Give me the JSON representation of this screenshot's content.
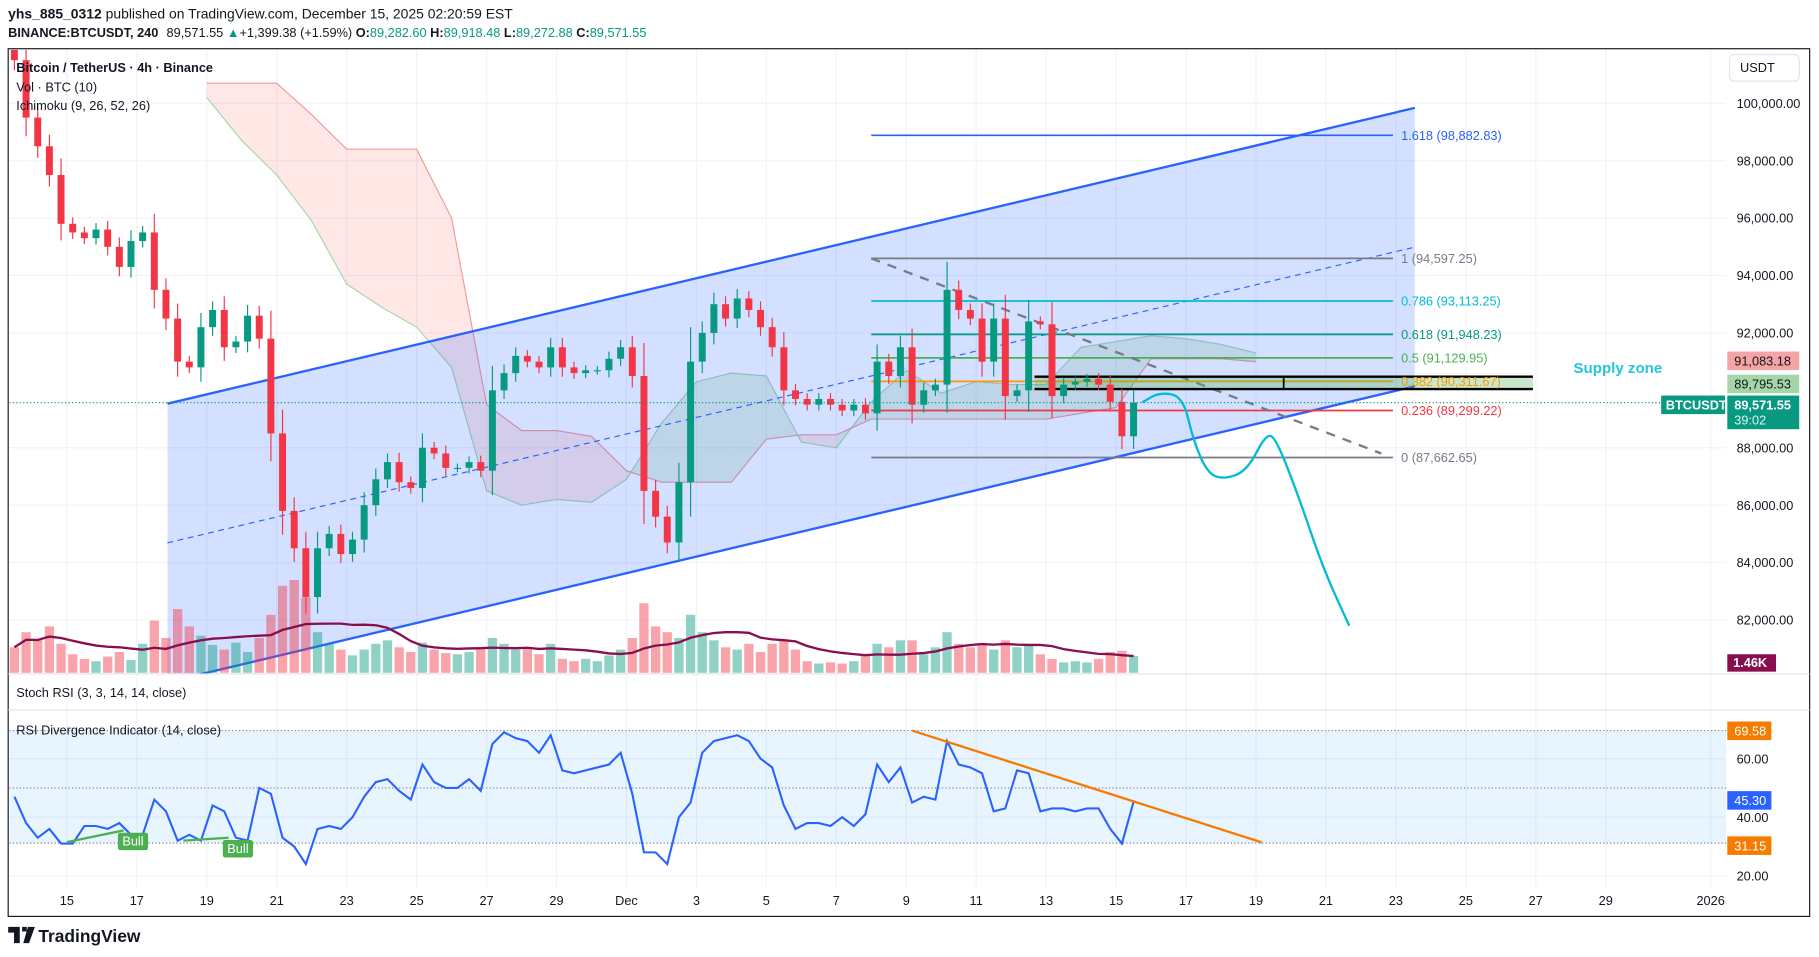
{
  "header": {
    "publisher": "yhs_885_0312",
    "published_text": " published on TradingView.com, December 15, 2025 02:20:59 EST",
    "symbol": "BINANCE:BTCUSDT, 240",
    "last": "89,571.55",
    "change": "+1,399.38 (+1.59%)",
    "o_label": "O:",
    "o": "89,282.60",
    "h_label": "H:",
    "h": "89,918.48",
    "l_label": "L:",
    "l": "89,272.88",
    "c_label": "C:",
    "c": "89,571.55"
  },
  "legend": {
    "title": "Bitcoin / TetherUS · 4h · Binance",
    "volume": "Vol · BTC (10)",
    "ichimoku": "Ichimoku (9, 26, 52, 26)",
    "stoch_rsi": "Stoch RSI (3, 3, 14, 14, close)",
    "rsi_divergence": "RSI Divergence Indicator (14, close)"
  },
  "price_axis": {
    "currency": "USDT",
    "ticks": [
      {
        "value": 100000,
        "label": "100,000.00"
      },
      {
        "value": 98000,
        "label": "98,000.00"
      },
      {
        "value": 96000,
        "label": "96,000.00"
      },
      {
        "value": 94000,
        "label": "94,000.00"
      },
      {
        "value": 92000,
        "label": "92,000.00"
      },
      {
        "value": 88000,
        "label": "88,000.00"
      },
      {
        "value": 86000,
        "label": "86,000.00"
      },
      {
        "value": 84000,
        "label": "84,000.00"
      },
      {
        "value": 82000,
        "label": "82,000.00"
      }
    ]
  },
  "rsi_axis": {
    "ticks": [
      {
        "value": 60,
        "label": "60.00"
      },
      {
        "value": 40,
        "label": "40.00"
      },
      {
        "value": 20,
        "label": "20.00"
      }
    ]
  },
  "date_axis": {
    "ticks": [
      {
        "date": "2025-11-15",
        "label": "15"
      },
      {
        "date": "2025-11-17",
        "label": "17"
      },
      {
        "date": "2025-11-19",
        "label": "19"
      },
      {
        "date": "2025-11-21",
        "label": "21"
      },
      {
        "date": "2025-11-23",
        "label": "23"
      },
      {
        "date": "2025-11-25",
        "label": "25"
      },
      {
        "date": "2025-11-27",
        "label": "27"
      },
      {
        "date": "2025-11-29",
        "label": "29"
      },
      {
        "date": "2025-12-01",
        "label": "Dec"
      },
      {
        "date": "2025-12-03",
        "label": "3"
      },
      {
        "date": "2025-12-05",
        "label": "5"
      },
      {
        "date": "2025-12-07",
        "label": "7"
      },
      {
        "date": "2025-12-09",
        "label": "9"
      },
      {
        "date": "2025-12-11",
        "label": "11"
      },
      {
        "date": "2025-12-13",
        "label": "13"
      },
      {
        "date": "2025-12-15",
        "label": "15"
      },
      {
        "date": "2025-12-17",
        "label": "17"
      },
      {
        "date": "2025-12-19",
        "label": "19"
      },
      {
        "date": "2025-12-21",
        "label": "21"
      },
      {
        "date": "2025-12-23",
        "label": "23"
      },
      {
        "date": "2025-12-25",
        "label": "25"
      },
      {
        "date": "2025-12-27",
        "label": "27"
      },
      {
        "date": "2025-12-29",
        "label": "29"
      },
      {
        "date": "2026-01-01",
        "label": "2026"
      }
    ]
  },
  "tags": {
    "supply_top": {
      "value": "91,083.18",
      "bg": "#f4a4a4"
    },
    "supply_bottom": {
      "value": "89,795.53",
      "bg": "#a5d6a7"
    },
    "symbol": "BTCUSDT",
    "last_price": "89,571.55",
    "countdown": "39:02",
    "last_color": "#089981",
    "volume": "1.46K",
    "volume_color": "#880e4f",
    "rsi_upper": "69.58",
    "rsi_value": "45.30",
    "rsi_lower": "31.15",
    "rsi_band_color": "#f57c00",
    "rsi_line_color": "#2962ff"
  },
  "fib": {
    "from": "2025-12-08T00:00",
    "to": "2025-12-22T22:00",
    "levels": [
      {
        "ratio": "1.618",
        "price": 98882.83,
        "label": "1.618 (98,882.83)",
        "color": "#2962ff"
      },
      {
        "ratio": "1",
        "price": 94597.25,
        "label": "1 (94,597.25)",
        "color": "#787b86"
      },
      {
        "ratio": "0.786",
        "price": 93113.25,
        "label": "0.786 (93,113.25)",
        "color": "#00bcd4"
      },
      {
        "ratio": "0.618",
        "price": 91948.23,
        "label": "0.618 (91,948.23)",
        "color": "#089981"
      },
      {
        "ratio": "0.5",
        "price": 91129.95,
        "label": "0.5 (91,129.95)",
        "color": "#4caf50"
      },
      {
        "ratio": "0.382",
        "price": 90311.67,
        "label": "0.382 (90,311.67)",
        "color": "#ff9800"
      },
      {
        "ratio": "0.236",
        "price": 89299.22,
        "label": "0.236 (89,299.22)",
        "color": "#f23645"
      },
      {
        "ratio": "0",
        "price": 87662.65,
        "label": "0 (87,662.65)",
        "color": "#787b86"
      }
    ],
    "trend": [
      [
        "2025-12-08T00:00",
        94597
      ],
      [
        "2025-12-22T14:00",
        87800
      ]
    ]
  },
  "channel": {
    "color": "#2962ff",
    "upper": [
      [
        "2025-11-17T21:00",
        89535
      ],
      [
        "2025-12-23T13:00",
        99838
      ]
    ],
    "lower": [
      [
        "2025-11-17T21:00",
        79840
      ],
      [
        "2025-12-23T13:00",
        90141
      ]
    ]
  },
  "supply_zone": {
    "label": "Supply zone",
    "color": "#26c6da",
    "from": "2025-12-12T16:00",
    "to": "2025-12-26T22:00",
    "top": 90475,
    "bottom": 90045
  },
  "projection": {
    "color": "#00bcd4",
    "points": [
      [
        "2025-12-15T18:00",
        89580
      ],
      [
        "2025-12-16T06:00",
        89940
      ],
      [
        "2025-12-16T22:00",
        89780
      ],
      [
        "2025-12-17T05:00",
        88240
      ],
      [
        "2025-12-17T15:00",
        87100
      ],
      [
        "2025-12-18T02:00",
        86900
      ],
      [
        "2025-12-18T18:00",
        87200
      ],
      [
        "2025-12-19T07:00",
        88500
      ],
      [
        "2025-12-19T14:00",
        88300
      ],
      [
        "2025-12-20T06:00",
        86200
      ],
      [
        "2025-12-20T22:00",
        83800
      ],
      [
        "2025-12-21T16:00",
        81800
      ]
    ]
  },
  "divergences": [
    {
      "label": "Bull",
      "from": [
        "2025-11-15T00:00",
        31.5
      ],
      "to": [
        "2025-11-16T15:00",
        35.5
      ]
    },
    {
      "label": "Bull",
      "from": [
        "2025-11-18T08:00",
        32.0
      ],
      "to": [
        "2025-11-19T15:00",
        33.0
      ]
    }
  ],
  "rsi_trendline": {
    "color": "#f57c00",
    "from": [
      "2025-12-09T04:00",
      69.58
    ],
    "to": [
      "2025-12-19T04:00",
      31.4
    ]
  },
  "chart_data": {
    "type": "candlestick",
    "ylim": [
      80150,
      101900
    ],
    "xlim": [
      "2025-11-13",
      "2026-01-01"
    ],
    "grid": true,
    "closes": [
      101500,
      99500,
      98500,
      97500,
      95800,
      95500,
      95300,
      95600,
      95000,
      94300,
      95200,
      95500,
      93500,
      92500,
      91000,
      90800,
      92200,
      92800,
      91500,
      91700,
      92600,
      91800,
      88500,
      85800,
      84500,
      82800,
      84500,
      85000,
      84300,
      84800,
      86000,
      86900,
      87500,
      86800,
      86600,
      88000,
      87800,
      87300,
      87300,
      87500,
      87200,
      90000,
      90600,
      91200,
      91000,
      90800,
      91500,
      90800,
      90600,
      90700,
      90700,
      91100,
      91500,
      90500,
      86500,
      85600,
      84700,
      86800,
      91000,
      92000,
      93000,
      92500,
      93200,
      92800,
      92200,
      91500,
      90000,
      89700,
      89500,
      89700,
      89500,
      89300,
      89500,
      89200,
      91000,
      90500,
      91500,
      89500,
      90000,
      90200,
      93500,
      92800,
      92500,
      91000,
      92500,
      89800,
      90000,
      92400,
      92300,
      89800,
      90200,
      90300,
      90400,
      90200,
      89600,
      88400,
      89571.55
    ],
    "volume_k": [
      2.2,
      3.5,
      2.8,
      4.0,
      2.5,
      1.6,
      1.2,
      1.0,
      1.4,
      1.8,
      1.1,
      2.5,
      4.5,
      3.0,
      5.5,
      4.0,
      3.2,
      2.4,
      2.0,
      2.6,
      1.8,
      3.0,
      5.0,
      7.5,
      8.0,
      6.5,
      3.5,
      2.5,
      2.0,
      1.5,
      2.0,
      2.5,
      2.8,
      2.2,
      1.8,
      2.6,
      2.0,
      1.7,
      1.6,
      1.8,
      2.2,
      3.0,
      2.5,
      2.0,
      2.2,
      1.6,
      2.5,
      1.2,
      1.0,
      1.2,
      1.0,
      1.5,
      2.0,
      3.0,
      6.0,
      4.0,
      3.5,
      3.0,
      5.0,
      3.5,
      2.8,
      2.2,
      2.0,
      2.5,
      1.8,
      2.5,
      2.8,
      2.0,
      1.0,
      0.8,
      0.9,
      0.8,
      1.0,
      1.6,
      2.5,
      2.2,
      2.8,
      2.8,
      1.6,
      2.2,
      3.5,
      2.5,
      2.2,
      2.5,
      2.0,
      2.8,
      2.2,
      2.5,
      1.6,
      1.2,
      0.9,
      1.0,
      0.9,
      1.2,
      1.8,
      1.9,
      1.46
    ],
    "rsi": [
      47,
      38,
      33,
      36,
      31,
      31,
      37,
      37,
      36,
      38,
      34,
      34,
      46,
      42,
      32,
      34,
      32,
      44,
      42,
      33,
      32,
      50,
      48,
      33,
      30,
      24,
      36,
      37,
      36,
      40,
      47,
      52,
      53,
      49,
      46,
      58,
      52,
      50,
      50,
      53,
      49,
      65,
      69,
      67,
      66,
      62,
      68,
      56,
      55,
      56,
      57,
      58,
      62,
      48,
      28,
      28,
      24,
      40,
      45,
      62,
      66,
      67,
      68,
      66,
      60,
      57,
      44,
      36,
      38,
      38,
      37,
      40,
      37,
      41,
      58,
      52,
      57,
      45,
      47,
      46,
      66,
      58,
      57,
      55,
      42,
      43,
      56,
      55,
      42,
      43,
      43,
      42,
      43,
      43,
      36,
      31,
      45.3
    ],
    "rsi_levels": {
      "upper": 69.58,
      "middle": 50,
      "lower": 31.15
    },
    "ichimoku": {
      "dates": [
        "2025-11-19",
        "2025-11-20",
        "2025-11-21",
        "2025-11-22",
        "2025-11-23",
        "2025-11-24",
        "2025-11-25",
        "2025-11-26",
        "2025-11-27",
        "2025-11-28",
        "2025-11-29",
        "2025-11-30",
        "2025-12-01",
        "2025-12-02",
        "2025-12-03",
        "2025-12-04",
        "2025-12-05",
        "2025-12-06",
        "2025-12-07",
        "2025-12-08",
        "2025-12-09",
        "2025-12-10",
        "2025-12-11",
        "2025-12-12",
        "2025-12-13",
        "2025-12-14",
        "2025-12-15",
        "2025-12-16",
        "2025-12-17",
        "2025-12-18",
        "2025-12-19"
      ],
      "span_a": [
        100200,
        98700,
        97500,
        95900,
        93700,
        92900,
        92200,
        90800,
        86500,
        86000,
        86200,
        86100,
        86900,
        88850,
        90300,
        90600,
        90500,
        88200,
        88000,
        89600,
        90700,
        89900,
        90300,
        90200,
        90200,
        91500,
        91700,
        91900,
        91800,
        91600,
        91300
      ],
      "span_b": [
        100700,
        100700,
        100700,
        99600,
        98400,
        98400,
        98400,
        96000,
        89500,
        88600,
        88600,
        88400,
        87200,
        86800,
        86800,
        86800,
        88300,
        88450,
        88450,
        89000,
        89000,
        89000,
        89000,
        89000,
        89000,
        89200,
        89400,
        91100,
        91100,
        91100,
        91000
      ]
    }
  },
  "footer": {
    "brand": "TradingView"
  }
}
